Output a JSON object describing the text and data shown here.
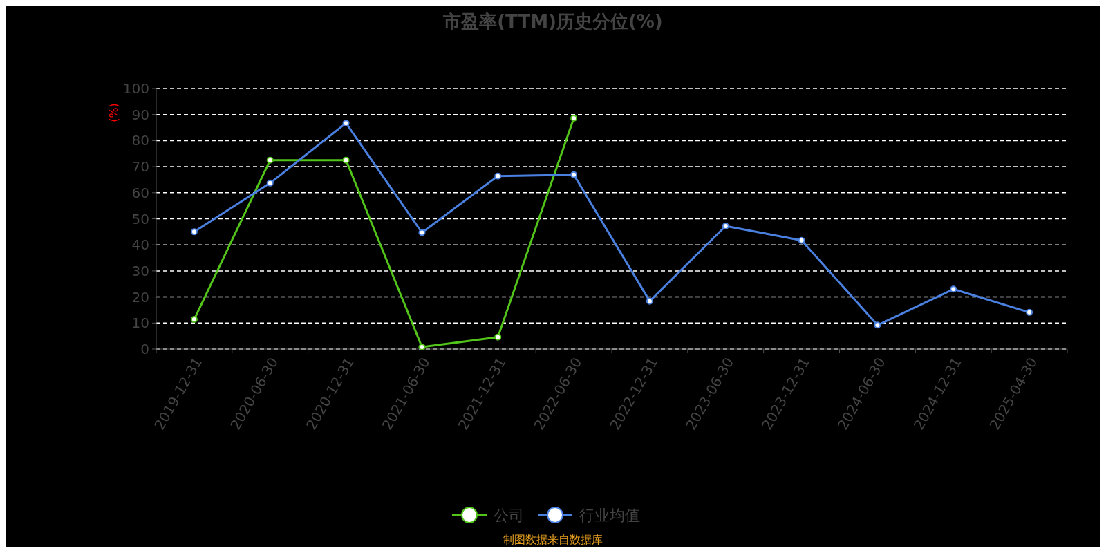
{
  "chart_data": {
    "type": "line",
    "title": "市盈率(TTM)历史分位(%)",
    "ylabel": "(%)",
    "categories": [
      "2019-12-31",
      "2020-06-30",
      "2020-12-31",
      "2021-06-30",
      "2021-12-31",
      "2022-06-30",
      "2022-12-31",
      "2023-06-30",
      "2023-12-31",
      "2024-06-30",
      "2024-12-31",
      "2025-04-30"
    ],
    "series": [
      {
        "name": "公司",
        "color": "#52c41a",
        "values": [
          11.4,
          72.5,
          72.5,
          0.8,
          4.6,
          88.6,
          null,
          null,
          null,
          null,
          null,
          null
        ]
      },
      {
        "name": "行业均值",
        "color": "#4a80e0",
        "values": [
          45,
          63.7,
          86.7,
          44.7,
          66.4,
          66.9,
          18.4,
          47.2,
          41.7,
          9.2,
          23,
          14.1
        ]
      }
    ],
    "ylim": [
      0,
      100
    ],
    "yticks": [
      0,
      10,
      20,
      30,
      40,
      50,
      60,
      70,
      80,
      90,
      100
    ],
    "grid": "y",
    "legend": "bottom",
    "marker": "circle",
    "annotations": [
      "制图数据来自数据库"
    ]
  }
}
